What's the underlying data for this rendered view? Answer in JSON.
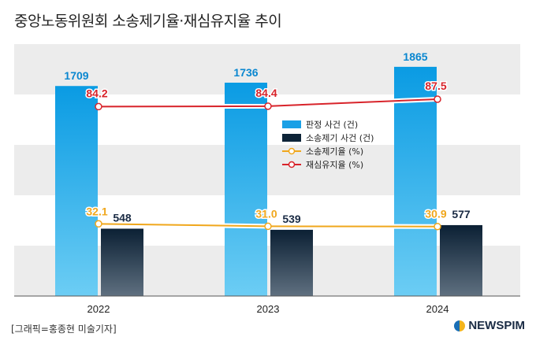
{
  "title": "중앙노동위원회 소송제기율·재심유지율 추이",
  "credit": "[그래픽=홍종현 미술기자]",
  "brand": "NEWSPIM",
  "chart_data": {
    "type": "bar",
    "categories": [
      "2022",
      "2023",
      "2024"
    ],
    "series": [
      {
        "name": "판정 사건 (건)",
        "type": "bar",
        "values": [
          1709,
          1736,
          1865
        ],
        "color": "#1aa0e6"
      },
      {
        "name": "소송제기 사건 (건)",
        "type": "bar",
        "values": [
          548,
          539,
          577
        ],
        "color": "#0d2438"
      },
      {
        "name": "소송제기율 (%)",
        "type": "line",
        "values": [
          32.1,
          31.0,
          30.9
        ],
        "color": "#f0a71c"
      },
      {
        "name": "재심유지율 (%)",
        "type": "line",
        "values": [
          84.2,
          84.4,
          87.5
        ],
        "color": "#d8232a"
      }
    ],
    "ylim_bars": [
      0,
      2050
    ],
    "ylim_rates": [
      0,
      100
    ],
    "grid": true,
    "legend_position": "center"
  }
}
